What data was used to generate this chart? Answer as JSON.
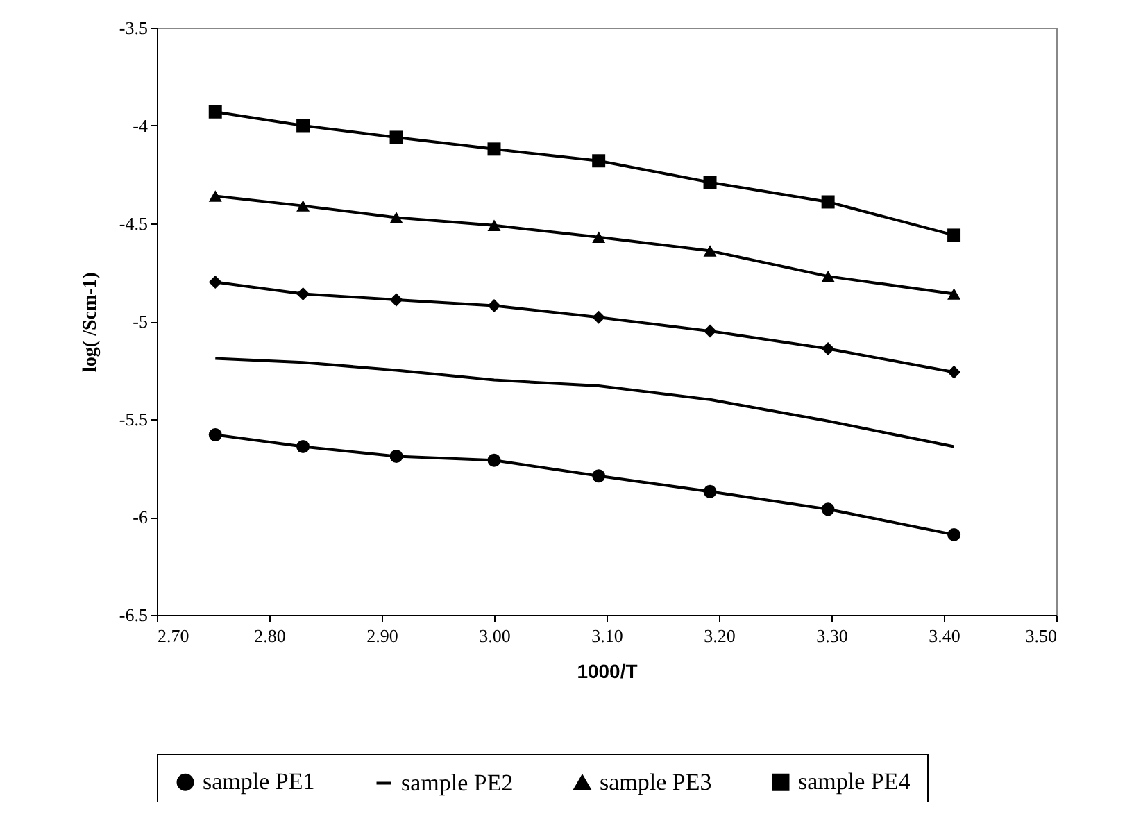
{
  "chart_data": {
    "type": "line",
    "xlabel": "1000/T",
    "ylabel": "log(  /Scm-1)",
    "x": [
      2.752,
      2.83,
      2.913,
      3.0,
      3.093,
      3.192,
      3.297,
      3.409
    ],
    "series": [
      {
        "name": "sample PE1",
        "color": "#000000",
        "marker": "circle",
        "values": [
          -5.58,
          -5.64,
          -5.69,
          -5.71,
          -5.79,
          -5.87,
          -5.96,
          -6.09
        ]
      },
      {
        "name": "sample PE2",
        "color": "#000000",
        "marker": "none",
        "values": [
          -5.19,
          -5.21,
          -5.25,
          -5.3,
          -5.33,
          -5.4,
          -5.51,
          -5.64
        ]
      },
      {
        "name": "sample PE3",
        "color": "#000000",
        "marker": "triangle",
        "values": [
          -4.36,
          -4.41,
          -4.47,
          -4.51,
          -4.57,
          -4.64,
          -4.77,
          -4.86
        ]
      },
      {
        "name": "sample PE4",
        "color": "#000000",
        "marker": "square",
        "values": [
          -3.93,
          -4.0,
          -4.06,
          -4.12,
          -4.18,
          -4.29,
          -4.39,
          -4.56
        ]
      },
      {
        "color": "#000000",
        "marker": "diamond",
        "values": [
          -4.8,
          -4.86,
          -4.89,
          -4.92,
          -4.98,
          -5.05,
          -5.14,
          -5.26
        ]
      }
    ],
    "xlim": [
      2.7,
      3.5
    ],
    "xticks": [
      {
        "value": 2.7,
        "label": "2.70"
      },
      {
        "value": 2.8,
        "label": "2.80"
      },
      {
        "value": 2.9,
        "label": "2.90"
      },
      {
        "value": 3.0,
        "label": "3.00"
      },
      {
        "value": 3.1,
        "label": "3.10"
      },
      {
        "value": 3.2,
        "label": "3.20"
      },
      {
        "value": 3.3,
        "label": "3.30"
      },
      {
        "value": 3.4,
        "label": "3.40"
      },
      {
        "value": 3.5,
        "label": "3.50"
      }
    ],
    "ylim": [
      -6.5,
      -3.5
    ],
    "yticks": [
      -6.5,
      -6,
      -5.5,
      -5,
      -4.5,
      -4,
      -3.5
    ],
    "grid": false,
    "legend": "bottom",
    "line_style": "solid"
  }
}
